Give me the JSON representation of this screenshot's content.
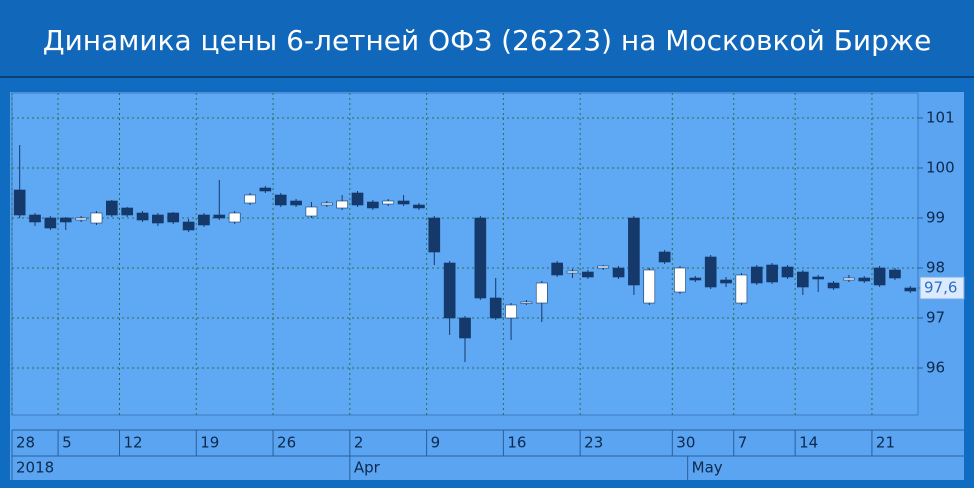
{
  "chart_data": {
    "type": "candlestick",
    "title": "Динамика цены 6-летней ОФЗ (26223) на Московкой Бирже",
    "categories": [
      "28",
      null,
      null,
      "5",
      null,
      null,
      null,
      "12",
      null,
      null,
      null,
      null,
      "19",
      null,
      null,
      null,
      null,
      "26",
      null,
      null,
      null,
      null,
      "2",
      null,
      null,
      null,
      null,
      "9",
      null,
      null,
      null,
      null,
      "16",
      null,
      null,
      null,
      null,
      "23",
      null,
      null,
      null,
      null,
      null,
      "30",
      null,
      null,
      null,
      "7",
      null,
      null,
      null,
      "14",
      null,
      null,
      null,
      null,
      "21",
      null,
      null
    ],
    "months": [
      "2018",
      null,
      null,
      null,
      null,
      null,
      null,
      null,
      null,
      null,
      null,
      null,
      null,
      null,
      null,
      null,
      null,
      null,
      null,
      null,
      null,
      null,
      "Apr",
      null,
      null,
      null,
      null,
      null,
      null,
      null,
      null,
      null,
      null,
      null,
      null,
      null,
      null,
      null,
      null,
      null,
      null,
      null,
      null,
      null,
      "May",
      null,
      null,
      null,
      null,
      null,
      null,
      null,
      null,
      null,
      null,
      null,
      null,
      null,
      null
    ],
    "open": [
      99.56,
      99.06,
      99.0,
      99.0,
      98.96,
      98.9,
      99.34,
      99.2,
      99.1,
      99.06,
      99.1,
      98.92,
      99.06,
      99.06,
      98.92,
      99.3,
      99.6,
      99.46,
      99.34,
      99.04,
      99.26,
      99.2,
      99.5,
      99.32,
      99.28,
      99.34,
      99.26,
      99.0,
      98.1,
      97.0,
      99.0,
      97.4,
      97.0,
      97.3,
      97.3,
      98.1,
      97.9,
      97.92,
      98.0,
      98.0,
      99.0,
      97.3,
      98.32,
      97.52,
      97.8,
      98.22,
      97.76,
      97.3,
      98.02,
      98.06,
      98.02,
      97.92,
      97.82,
      97.7,
      97.76,
      97.8,
      98.0,
      97.96,
      97.6
    ],
    "high": [
      100.46,
      99.1,
      99.04,
      99.02,
      99.04,
      99.14,
      99.36,
      99.22,
      99.14,
      99.1,
      99.12,
      98.98,
      99.1,
      99.76,
      99.14,
      99.5,
      99.64,
      99.5,
      99.38,
      99.32,
      99.34,
      99.46,
      99.54,
      99.36,
      99.38,
      99.46,
      99.3,
      99.04,
      98.14,
      97.04,
      99.04,
      97.8,
      97.3,
      97.36,
      97.74,
      98.14,
      97.98,
      97.96,
      98.06,
      98.04,
      99.04,
      98.0,
      98.36,
      98.04,
      97.84,
      98.26,
      97.82,
      97.9,
      98.06,
      98.1,
      98.06,
      97.96,
      97.86,
      97.74,
      97.86,
      97.84,
      98.04,
      98.0,
      97.64
    ],
    "low": [
      99.0,
      98.84,
      98.76,
      98.76,
      98.92,
      98.86,
      99.02,
      99.02,
      98.92,
      98.84,
      98.88,
      98.72,
      98.82,
      98.96,
      98.88,
      99.26,
      99.5,
      99.22,
      99.22,
      99.0,
      99.22,
      99.16,
      99.22,
      99.16,
      99.24,
      99.24,
      99.16,
      98.06,
      96.66,
      96.12,
      97.36,
      96.96,
      96.56,
      97.26,
      96.92,
      97.82,
      97.8,
      97.78,
      97.96,
      97.78,
      97.46,
      97.26,
      98.08,
      97.48,
      97.72,
      97.58,
      97.62,
      97.26,
      97.66,
      97.68,
      97.78,
      97.46,
      97.52,
      97.56,
      97.72,
      97.7,
      97.62,
      97.76,
      97.5
    ],
    "close": [
      99.06,
      98.92,
      98.8,
      98.92,
      99.0,
      99.1,
      99.06,
      99.06,
      98.96,
      98.9,
      98.92,
      98.76,
      98.86,
      99.0,
      99.1,
      99.46,
      99.54,
      99.26,
      99.26,
      99.22,
      99.3,
      99.34,
      99.26,
      99.2,
      99.34,
      99.28,
      99.2,
      98.32,
      97.0,
      96.6,
      97.4,
      97.0,
      97.26,
      97.32,
      97.7,
      97.86,
      97.94,
      97.82,
      98.04,
      97.82,
      97.66,
      97.96,
      98.12,
      98.0,
      97.76,
      97.62,
      97.7,
      97.86,
      97.7,
      97.72,
      97.82,
      97.62,
      97.78,
      97.6,
      97.8,
      97.74,
      97.66,
      97.8,
      97.54
    ],
    "up_color": "#ffffff",
    "down_color": "#15396b",
    "ylim": [
      95.06,
      101.5
    ],
    "yticks": [
      96,
      97,
      98,
      99,
      100,
      101
    ],
    "last_price": {
      "value": 97.6,
      "label": "97,6"
    },
    "grid": true
  }
}
